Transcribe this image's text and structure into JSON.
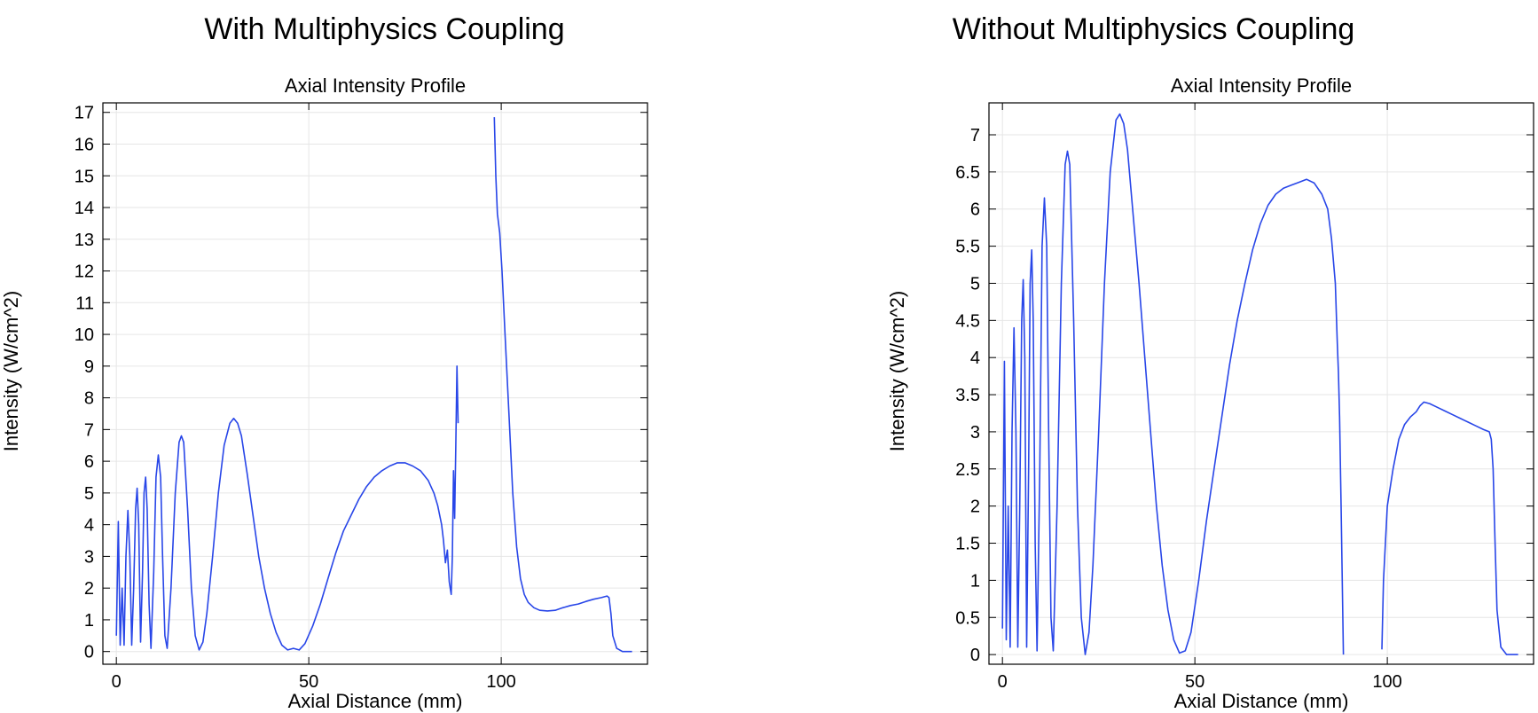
{
  "panels": [
    {
      "title": "With Multiphysics Coupling"
    },
    {
      "title": "Without Multiphysics Coupling"
    }
  ],
  "colors": {
    "series": "#2846e8",
    "grid": "#e6e6e6",
    "axis": "#000000"
  },
  "chart_data": [
    {
      "type": "line",
      "title": "Axial Intensity Profile",
      "xlabel": "Axial Distance (mm)",
      "ylabel": "Intensity (W/cm^2)",
      "xlim": [
        -3.5,
        138
      ],
      "ylim": [
        -0.4,
        17.3
      ],
      "xticks": [
        0,
        50,
        100
      ],
      "yticks": [
        0,
        1,
        2,
        3,
        4,
        5,
        6,
        7,
        8,
        9,
        10,
        11,
        12,
        13,
        14,
        15,
        16,
        17
      ],
      "grid": true,
      "series": [
        {
          "segments": [
            [
              [
                0.0,
                0.5
              ],
              [
                0.5,
                4.1
              ],
              [
                1.0,
                0.2
              ],
              [
                1.5,
                2.0
              ],
              [
                2.0,
                0.2
              ],
              [
                2.5,
                3.0
              ],
              [
                3.0,
                4.45
              ],
              [
                3.5,
                3.0
              ],
              [
                4.0,
                0.2
              ],
              [
                4.5,
                2.0
              ],
              [
                5.0,
                4.5
              ],
              [
                5.4,
                5.15
              ],
              [
                5.8,
                4.0
              ],
              [
                6.3,
                0.3
              ],
              [
                6.8,
                2.5
              ],
              [
                7.2,
                5.0
              ],
              [
                7.6,
                5.5
              ],
              [
                8.0,
                4.5
              ],
              [
                8.5,
                1.5
              ],
              [
                9.0,
                0.1
              ],
              [
                9.7,
                2.5
              ],
              [
                10.3,
                5.5
              ],
              [
                10.9,
                6.2
              ],
              [
                11.5,
                5.5
              ],
              [
                12.0,
                3.0
              ],
              [
                12.6,
                0.5
              ],
              [
                13.2,
                0.1
              ],
              [
                14.2,
                2.0
              ],
              [
                15.3,
                5.0
              ],
              [
                16.3,
                6.6
              ],
              [
                16.9,
                6.8
              ],
              [
                17.5,
                6.6
              ],
              [
                18.5,
                4.5
              ],
              [
                19.5,
                2.0
              ],
              [
                20.5,
                0.5
              ],
              [
                21.5,
                0.05
              ],
              [
                22.5,
                0.3
              ],
              [
                23.5,
                1.2
              ],
              [
                25.0,
                3.0
              ],
              [
                26.5,
                5.0
              ],
              [
                28.0,
                6.5
              ],
              [
                29.5,
                7.2
              ],
              [
                30.5,
                7.35
              ],
              [
                31.5,
                7.2
              ],
              [
                32.5,
                6.8
              ],
              [
                34.0,
                5.6
              ],
              [
                35.5,
                4.3
              ],
              [
                37.0,
                3.0
              ],
              [
                38.5,
                2.0
              ],
              [
                40.0,
                1.2
              ],
              [
                41.5,
                0.6
              ],
              [
                43.0,
                0.2
              ],
              [
                44.5,
                0.05
              ],
              [
                46.0,
                0.1
              ],
              [
                47.5,
                0.05
              ],
              [
                49.0,
                0.25
              ],
              [
                51.0,
                0.8
              ],
              [
                53.0,
                1.5
              ],
              [
                55.0,
                2.3
              ],
              [
                57.0,
                3.1
              ],
              [
                59.0,
                3.8
              ],
              [
                61.0,
                4.3
              ],
              [
                63.0,
                4.8
              ],
              [
                65.0,
                5.2
              ],
              [
                67.0,
                5.5
              ],
              [
                69.0,
                5.7
              ],
              [
                71.0,
                5.85
              ],
              [
                73.0,
                5.95
              ],
              [
                75.0,
                5.95
              ],
              [
                77.0,
                5.85
              ],
              [
                79.0,
                5.7
              ],
              [
                81.0,
                5.4
              ],
              [
                82.5,
                5.0
              ],
              [
                83.5,
                4.6
              ],
              [
                84.5,
                4.0
              ],
              [
                85.0,
                3.5
              ],
              [
                85.5,
                2.8
              ],
              [
                86.0,
                3.2
              ],
              [
                86.5,
                2.2
              ],
              [
                87.0,
                1.8
              ],
              [
                87.3,
                3.0
              ],
              [
                87.6,
                5.7
              ],
              [
                87.9,
                4.2
              ],
              [
                88.2,
                6.5
              ],
              [
                88.5,
                9.0
              ],
              [
                88.8,
                7.2
              ]
            ],
            [
              [
                98.2,
                16.85
              ],
              [
                98.6,
                15.0
              ],
              [
                99.0,
                13.8
              ],
              [
                99.6,
                13.2
              ],
              [
                100.2,
                12.0
              ],
              [
                101.0,
                10.0
              ],
              [
                102.0,
                7.5
              ],
              [
                103.0,
                5.0
              ],
              [
                104.0,
                3.3
              ],
              [
                105.0,
                2.3
              ],
              [
                106.0,
                1.8
              ],
              [
                107.0,
                1.55
              ],
              [
                108.5,
                1.38
              ],
              [
                110.0,
                1.3
              ],
              [
                112.0,
                1.28
              ],
              [
                114.0,
                1.3
              ],
              [
                116.0,
                1.38
              ],
              [
                118.0,
                1.45
              ],
              [
                120.0,
                1.5
              ],
              [
                122.0,
                1.58
              ],
              [
                124.0,
                1.65
              ],
              [
                126.0,
                1.7
              ],
              [
                127.5,
                1.75
              ],
              [
                128.0,
                1.7
              ],
              [
                128.5,
                1.2
              ],
              [
                129.0,
                0.5
              ],
              [
                130.0,
                0.1
              ],
              [
                131.5,
                0.0
              ],
              [
                134.0,
                0.0
              ]
            ]
          ]
        }
      ]
    },
    {
      "type": "line",
      "title": "Axial Intensity Profile",
      "xlabel": "Axial Distance (mm)",
      "ylabel": "Intensity (W/cm^2)",
      "xlim": [
        -3.5,
        138
      ],
      "ylim": [
        -0.13,
        7.43
      ],
      "xticks": [
        0,
        50,
        100
      ],
      "yticks": [
        0,
        0.5,
        1,
        1.5,
        2,
        2.5,
        3,
        3.5,
        4,
        4.5,
        5,
        5.5,
        6,
        6.5,
        7
      ],
      "grid": true,
      "series": [
        {
          "segments": [
            [
              [
                0.0,
                0.35
              ],
              [
                0.5,
                3.95
              ],
              [
                1.0,
                0.2
              ],
              [
                1.5,
                2.0
              ],
              [
                2.0,
                0.1
              ],
              [
                2.5,
                3.0
              ],
              [
                3.0,
                4.4
              ],
              [
                3.5,
                3.0
              ],
              [
                4.0,
                0.1
              ],
              [
                4.5,
                2.0
              ],
              [
                5.0,
                4.5
              ],
              [
                5.4,
                5.05
              ],
              [
                5.8,
                4.0
              ],
              [
                6.3,
                0.1
              ],
              [
                6.8,
                2.5
              ],
              [
                7.2,
                5.0
              ],
              [
                7.6,
                5.45
              ],
              [
                8.0,
                4.5
              ],
              [
                8.5,
                1.5
              ],
              [
                9.0,
                0.05
              ],
              [
                9.7,
                2.5
              ],
              [
                10.3,
                5.5
              ],
              [
                10.9,
                6.15
              ],
              [
                11.5,
                5.5
              ],
              [
                12.0,
                3.0
              ],
              [
                12.6,
                0.5
              ],
              [
                13.2,
                0.05
              ],
              [
                14.2,
                2.0
              ],
              [
                15.3,
                5.0
              ],
              [
                16.3,
                6.6
              ],
              [
                16.9,
                6.78
              ],
              [
                17.5,
                6.6
              ],
              [
                18.5,
                4.5
              ],
              [
                19.5,
                2.0
              ],
              [
                20.5,
                0.5
              ],
              [
                21.5,
                0.0
              ],
              [
                22.5,
                0.3
              ],
              [
                23.5,
                1.2
              ],
              [
                25.0,
                3.0
              ],
              [
                26.5,
                5.0
              ],
              [
                28.0,
                6.5
              ],
              [
                29.5,
                7.2
              ],
              [
                30.5,
                7.28
              ],
              [
                31.5,
                7.15
              ],
              [
                32.5,
                6.8
              ],
              [
                34.0,
                5.9
              ],
              [
                35.5,
                5.0
              ],
              [
                37.0,
                4.0
              ],
              [
                38.5,
                3.0
              ],
              [
                40.0,
                2.0
              ],
              [
                41.5,
                1.2
              ],
              [
                43.0,
                0.6
              ],
              [
                44.5,
                0.2
              ],
              [
                46.0,
                0.02
              ],
              [
                47.5,
                0.05
              ],
              [
                49.0,
                0.3
              ],
              [
                51.0,
                1.0
              ],
              [
                53.0,
                1.8
              ],
              [
                55.0,
                2.5
              ],
              [
                57.0,
                3.2
              ],
              [
                59.0,
                3.9
              ],
              [
                61.0,
                4.5
              ],
              [
                63.0,
                5.0
              ],
              [
                65.0,
                5.45
              ],
              [
                67.0,
                5.8
              ],
              [
                69.0,
                6.05
              ],
              [
                71.0,
                6.2
              ],
              [
                73.0,
                6.28
              ],
              [
                75.0,
                6.32
              ],
              [
                77.0,
                6.36
              ],
              [
                79.0,
                6.4
              ],
              [
                81.0,
                6.35
              ],
              [
                83.0,
                6.2
              ],
              [
                84.5,
                6.0
              ],
              [
                85.5,
                5.6
              ],
              [
                86.5,
                5.0
              ],
              [
                87.0,
                4.2
              ],
              [
                87.3,
                3.8
              ],
              [
                87.6,
                3.2
              ],
              [
                88.0,
                2.0
              ],
              [
                88.3,
                1.0
              ],
              [
                88.6,
                0.0
              ]
            ],
            [
              [
                98.6,
                0.07
              ],
              [
                99.0,
                1.0
              ],
              [
                100.0,
                2.0
              ],
              [
                101.5,
                2.5
              ],
              [
                103.0,
                2.9
              ],
              [
                104.5,
                3.1
              ],
              [
                106.0,
                3.2
              ],
              [
                107.5,
                3.27
              ],
              [
                108.5,
                3.35
              ],
              [
                109.5,
                3.4
              ],
              [
                111.0,
                3.38
              ],
              [
                113.0,
                3.33
              ],
              [
                115.0,
                3.28
              ],
              [
                117.0,
                3.23
              ],
              [
                119.0,
                3.18
              ],
              [
                121.0,
                3.13
              ],
              [
                123.0,
                3.08
              ],
              [
                125.0,
                3.03
              ],
              [
                126.5,
                3.0
              ],
              [
                127.0,
                2.9
              ],
              [
                127.5,
                2.5
              ],
              [
                128.0,
                1.5
              ],
              [
                128.5,
                0.6
              ],
              [
                129.5,
                0.1
              ],
              [
                131.0,
                0.0
              ],
              [
                134.0,
                0.0
              ]
            ]
          ]
        }
      ]
    }
  ]
}
